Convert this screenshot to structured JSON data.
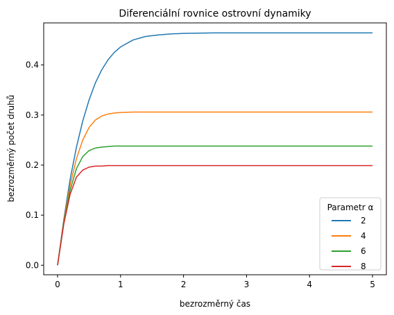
{
  "chart_data": {
    "type": "line",
    "title": "Diferenciální rovnice ostrovní dynamiky",
    "xlabel": "bezrozměrný čas",
    "ylabel": "bezrozměrný počet druhů",
    "xlim": [
      -0.22,
      5.22
    ],
    "ylim": [
      -0.019,
      0.484
    ],
    "xticks": [
      0,
      1,
      2,
      3,
      4,
      5
    ],
    "yticks": [
      0.0,
      0.1,
      0.2,
      0.3,
      0.4
    ],
    "xtick_labels": [
      "0",
      "1",
      "2",
      "3",
      "4",
      "5"
    ],
    "ytick_labels": [
      "0.0",
      "0.1",
      "0.2",
      "0.3",
      "0.4"
    ],
    "grid": false,
    "legend": {
      "title": "Parametr α",
      "placement": "lower-right"
    },
    "x": [
      0,
      0.1,
      0.2,
      0.3,
      0.4,
      0.5,
      0.6,
      0.7,
      0.8,
      0.9,
      1.0,
      1.2,
      1.4,
      1.6,
      1.8,
      2.0,
      2.5,
      3.0,
      3.5,
      4.0,
      4.5,
      5.0
    ],
    "series": [
      {
        "name": "2",
        "color": "#1f77b4",
        "values": [
          0.0,
          0.092,
          0.172,
          0.236,
          0.288,
          0.33,
          0.364,
          0.39,
          0.41,
          0.425,
          0.436,
          0.45,
          0.457,
          0.46,
          0.462,
          0.463,
          0.464,
          0.464,
          0.464,
          0.464,
          0.464,
          0.464
        ]
      },
      {
        "name": "4",
        "color": "#ff7f0e",
        "values": [
          0.0,
          0.088,
          0.16,
          0.213,
          0.25,
          0.275,
          0.29,
          0.298,
          0.302,
          0.304,
          0.305,
          0.306,
          0.306,
          0.306,
          0.306,
          0.306,
          0.306,
          0.306,
          0.306,
          0.306,
          0.306,
          0.306
        ]
      },
      {
        "name": "6",
        "color": "#2ca02c",
        "values": [
          0.0,
          0.085,
          0.15,
          0.193,
          0.217,
          0.229,
          0.234,
          0.236,
          0.237,
          0.238,
          0.238,
          0.238,
          0.238,
          0.238,
          0.238,
          0.238,
          0.238,
          0.238,
          0.238,
          0.238,
          0.238,
          0.238
        ]
      },
      {
        "name": "8",
        "color": "#d62728",
        "values": [
          0.0,
          0.083,
          0.142,
          0.176,
          0.19,
          0.196,
          0.198,
          0.198,
          0.199,
          0.199,
          0.199,
          0.199,
          0.199,
          0.199,
          0.199,
          0.199,
          0.199,
          0.199,
          0.199,
          0.199,
          0.199,
          0.199
        ]
      }
    ]
  }
}
